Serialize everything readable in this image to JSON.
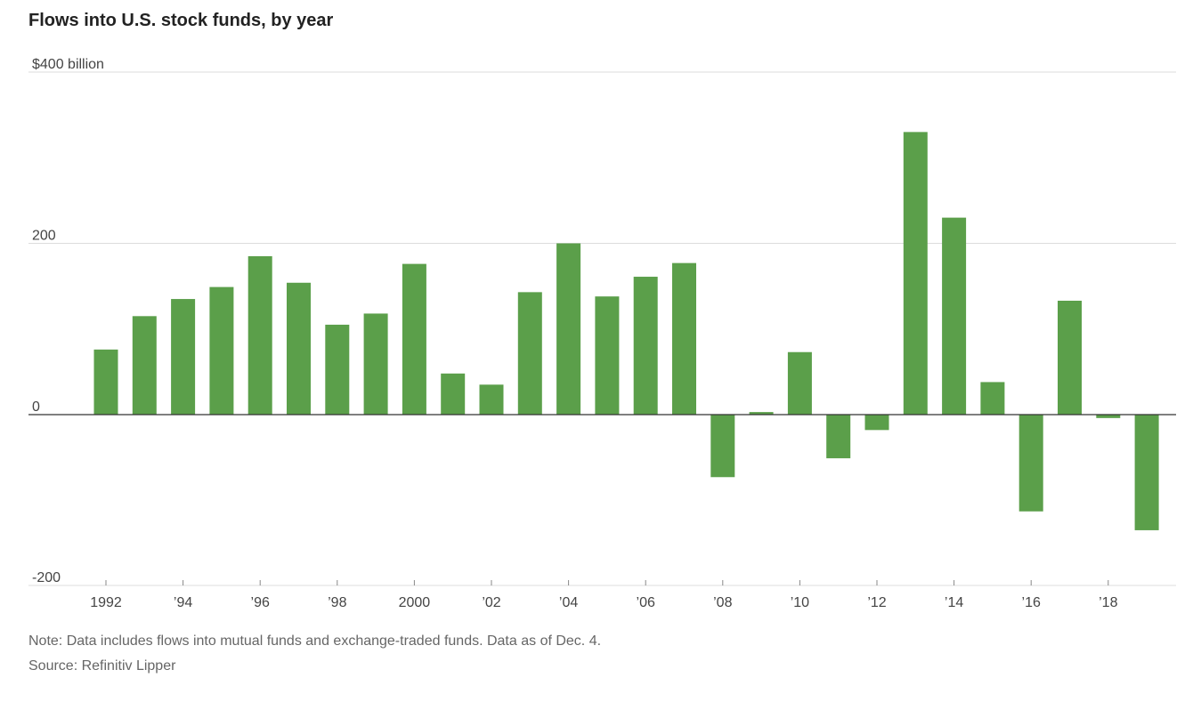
{
  "title": "Flows into U.S. stock funds, by year",
  "note": "Note: Data includes flows into mutual funds and exchange-traded funds. Data as of Dec. 4.",
  "source": "Source: Refinitiv Lipper",
  "colors": {
    "bar": "#5b9f4a",
    "grid": "#dddddd",
    "zero_line": "#333333",
    "text": "#444444"
  },
  "chart_data": {
    "type": "bar",
    "title": "Flows into U.S. stock funds, by year",
    "x": [
      1992,
      1993,
      1994,
      1995,
      1996,
      1997,
      1998,
      1999,
      2000,
      2001,
      2002,
      2003,
      2004,
      2005,
      2006,
      2007,
      2008,
      2009,
      2010,
      2011,
      2012,
      2013,
      2014,
      2015,
      2016,
      2017,
      2018,
      2019
    ],
    "values": [
      76,
      115,
      135,
      149,
      185,
      154,
      105,
      118,
      176,
      48,
      35,
      143,
      200,
      138,
      161,
      177,
      -73,
      3,
      73,
      -51,
      -18,
      330,
      230,
      38,
      -113,
      133,
      -4,
      -135
    ],
    "unit": "billion",
    "ylim": [
      -200,
      400
    ],
    "y_ticks": [
      {
        "value": 400,
        "label": "$400 billion"
      },
      {
        "value": 200,
        "label": "200"
      },
      {
        "value": 0,
        "label": "0"
      },
      {
        "value": -200,
        "label": "-200"
      }
    ],
    "x_ticks": [
      {
        "value": 1992,
        "label": "1992"
      },
      {
        "value": 1994,
        "label": "’94"
      },
      {
        "value": 1996,
        "label": "’96"
      },
      {
        "value": 1998,
        "label": "’98"
      },
      {
        "value": 2000,
        "label": "2000"
      },
      {
        "value": 2002,
        "label": "’02"
      },
      {
        "value": 2004,
        "label": "’04"
      },
      {
        "value": 2006,
        "label": "’06"
      },
      {
        "value": 2008,
        "label": "’08"
      },
      {
        "value": 2010,
        "label": "’10"
      },
      {
        "value": 2012,
        "label": "’12"
      },
      {
        "value": 2014,
        "label": "’14"
      },
      {
        "value": 2016,
        "label": "’16"
      },
      {
        "value": 2018,
        "label": "’18"
      }
    ],
    "grid": true,
    "legend": "none"
  }
}
